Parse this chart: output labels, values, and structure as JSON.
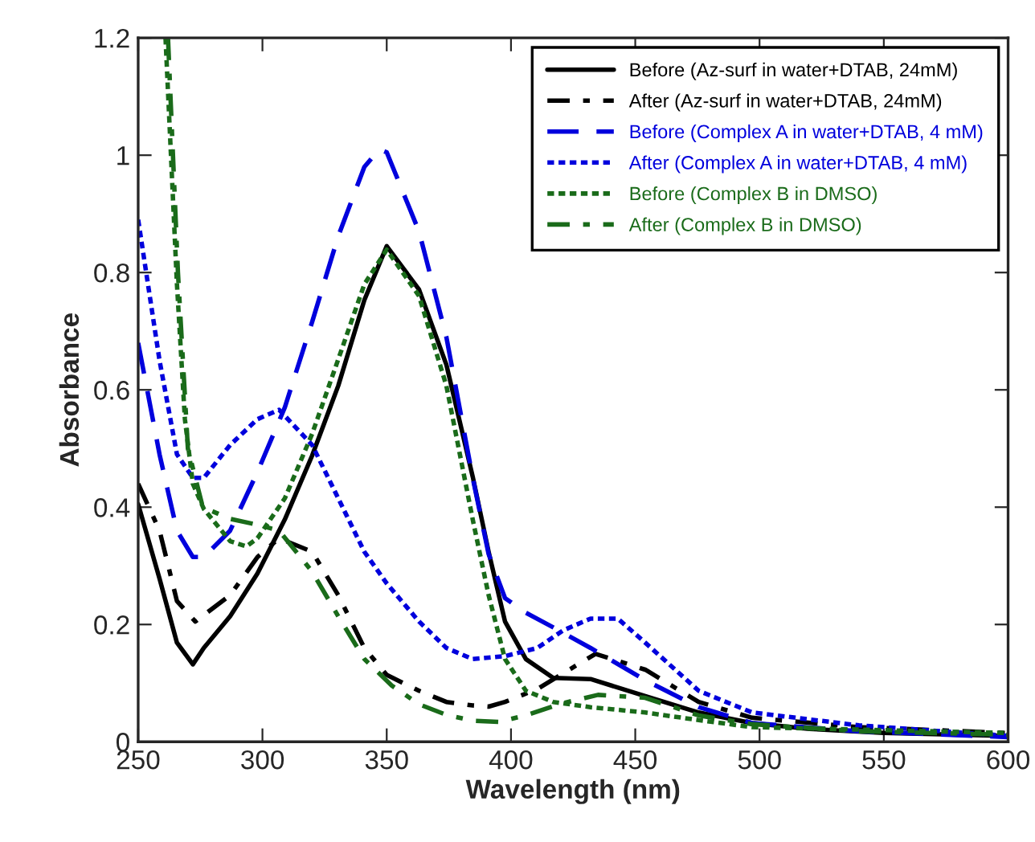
{
  "chart_data": {
    "type": "line",
    "xlabel": "Wavelength (nm)",
    "ylabel": "Absorbance",
    "xlim": [
      250,
      600
    ],
    "xticks": [
      250,
      300,
      350,
      400,
      450,
      500,
      550,
      600
    ],
    "ylim": [
      0,
      1.2
    ],
    "yticks": [
      0,
      0.2,
      0.4,
      0.6,
      0.8,
      1,
      1.2
    ],
    "grid": false,
    "legend": "top right",
    "series": [
      {
        "name": "Before (Az-surf in water+DTAB, 24mM)",
        "color": "#000000",
        "line_style": "solid",
        "x": [
          250,
          258.6,
          265.6,
          272,
          276.4,
          287,
          298,
          309,
          320,
          330.5,
          341,
          350,
          363,
          374,
          384.6,
          391,
          397.6,
          406,
          417,
          432,
          454,
          475.5,
          497,
          520,
          550,
          600
        ],
        "values": [
          0.405,
          0.278,
          0.169,
          0.132,
          0.16,
          0.214,
          0.287,
          0.379,
          0.488,
          0.607,
          0.753,
          0.845,
          0.771,
          0.643,
          0.452,
          0.324,
          0.205,
          0.141,
          0.109,
          0.107,
          0.078,
          0.05,
          0.032,
          0.022,
          0.015,
          0.01
        ]
      },
      {
        "name": "After (Az-surf in water+DTAB, 24mM)",
        "color": "#000000",
        "line_style": "dashdot",
        "x": [
          250,
          258.6,
          265.6,
          273,
          287,
          298,
          306.7,
          320,
          330.5,
          341,
          350,
          363,
          374,
          384.6,
          391,
          397.6,
          410.6,
          434,
          454,
          475.5,
          497,
          540,
          600
        ],
        "values": [
          0.44,
          0.36,
          0.24,
          0.205,
          0.25,
          0.315,
          0.347,
          0.324,
          0.25,
          0.16,
          0.114,
          0.087,
          0.068,
          0.062,
          0.06,
          0.068,
          0.09,
          0.15,
          0.123,
          0.068,
          0.041,
          0.025,
          0.015
        ]
      },
      {
        "name": "Before (Complex A in water+DTAB, 4 mM)",
        "color": "#0000dd",
        "line_style": "dashed",
        "x": [
          250,
          258.6,
          265.6,
          272,
          276.4,
          287,
          298,
          309,
          320,
          330.5,
          341,
          347,
          350,
          363,
          374,
          384.6,
          391,
          397.6,
          406,
          417,
          432,
          454,
          475.5,
          497,
          540,
          600
        ],
        "values": [
          0.68,
          0.49,
          0.36,
          0.315,
          0.315,
          0.36,
          0.46,
          0.57,
          0.716,
          0.862,
          0.98,
          1.01,
          1.005,
          0.87,
          0.69,
          0.45,
          0.32,
          0.245,
          0.22,
          0.195,
          0.16,
          0.105,
          0.059,
          0.032,
          0.018,
          0.008
        ]
      },
      {
        "name": "After (Complex A in water+DTAB, 4 mM)",
        "color": "#0000dd",
        "line_style": "dotted",
        "x": [
          250,
          258.6,
          265.6,
          272,
          276.4,
          287,
          298,
          306.7,
          320,
          330.5,
          341,
          350,
          363,
          374,
          384.6,
          397.6,
          410.6,
          421,
          432,
          443,
          454,
          475.5,
          497,
          540,
          600
        ],
        "values": [
          0.89,
          0.65,
          0.49,
          0.45,
          0.45,
          0.506,
          0.55,
          0.566,
          0.506,
          0.415,
          0.324,
          0.27,
          0.205,
          0.16,
          0.141,
          0.146,
          0.16,
          0.19,
          0.21,
          0.21,
          0.169,
          0.087,
          0.05,
          0.028,
          0.01
        ]
      },
      {
        "name": "Before (Complex B in DMSO)",
        "color": "#1a6b1a",
        "line_style": "dotted",
        "x": [
          261,
          265.6,
          268.8,
          272,
          276.4,
          287,
          293.5,
          298,
          309,
          320,
          330.5,
          341,
          350,
          363,
          374,
          384.6,
          391,
          397.6,
          406,
          417,
          432,
          454,
          475.5,
          497,
          600
        ],
        "values": [
          1.2,
          0.78,
          0.55,
          0.44,
          0.397,
          0.342,
          0.333,
          0.347,
          0.415,
          0.525,
          0.652,
          0.78,
          0.839,
          0.76,
          0.607,
          0.379,
          0.25,
          0.141,
          0.087,
          0.068,
          0.059,
          0.05,
          0.037,
          0.025,
          0.015
        ]
      },
      {
        "name": "After (Complex B in DMSO)",
        "color": "#1a6b1a",
        "line_style": "dashdot",
        "x": [
          262,
          266,
          270,
          276,
          287,
          298,
          306.7,
          320,
          330.5,
          341,
          352,
          363,
          374,
          384.6,
          395,
          406,
          420,
          435,
          454,
          475.5,
          497,
          540,
          600
        ],
        "values": [
          1.2,
          0.8,
          0.5,
          0.4,
          0.38,
          0.37,
          0.36,
          0.29,
          0.214,
          0.141,
          0.096,
          0.064,
          0.046,
          0.036,
          0.034,
          0.045,
          0.065,
          0.08,
          0.075,
          0.045,
          0.03,
          0.018,
          0.012
        ]
      }
    ]
  }
}
